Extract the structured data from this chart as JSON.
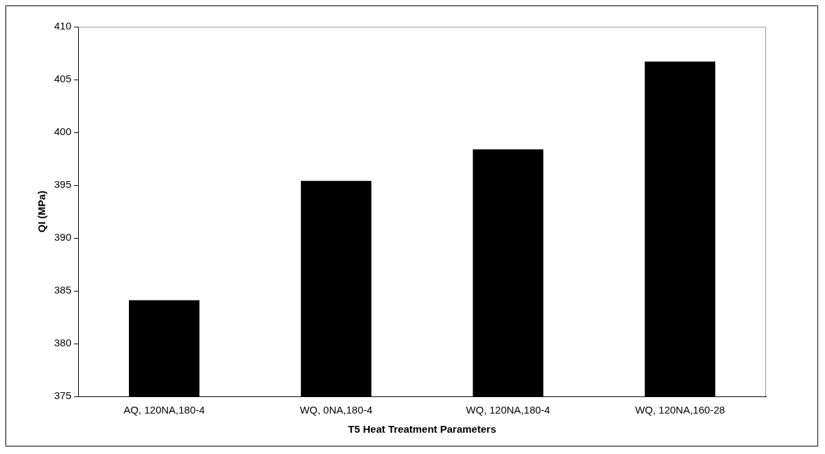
{
  "chart_data": {
    "type": "bar",
    "xlabel": "T5 Heat Treatment Parameters",
    "ylabel": "QI (MPa)",
    "categories": [
      "AQ, 120NA,180-4",
      "WQ, 0NA,180-4",
      "WQ, 120NA,180-4",
      "WQ, 120NA,160-28"
    ],
    "values": [
      384.1,
      395.4,
      398.4,
      406.7
    ],
    "color": "#000000",
    "ylim": [
      375,
      410
    ],
    "yticks": [
      375,
      380,
      385,
      390,
      395,
      400,
      405,
      410
    ],
    "grid": false,
    "legend": false
  }
}
